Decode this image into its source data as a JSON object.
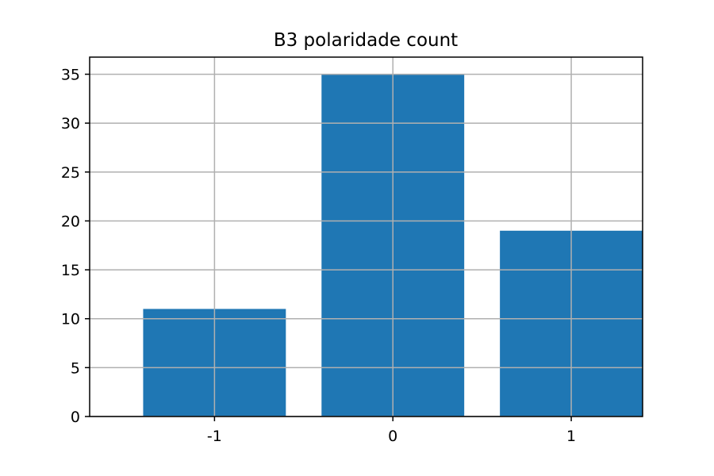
{
  "chart_data": {
    "type": "bar",
    "title": "B3 polaridade count",
    "xlabel": "",
    "ylabel": "",
    "categories": [
      "-1",
      "0",
      "1"
    ],
    "values": [
      11,
      35,
      19
    ],
    "ylim": [
      0,
      36.75
    ],
    "yticks": [
      "0",
      "5",
      "10",
      "15",
      "20",
      "25",
      "30",
      "35"
    ],
    "grid": true,
    "bar_color": "#1f77b4",
    "grid_color": "#b0b0b0"
  }
}
